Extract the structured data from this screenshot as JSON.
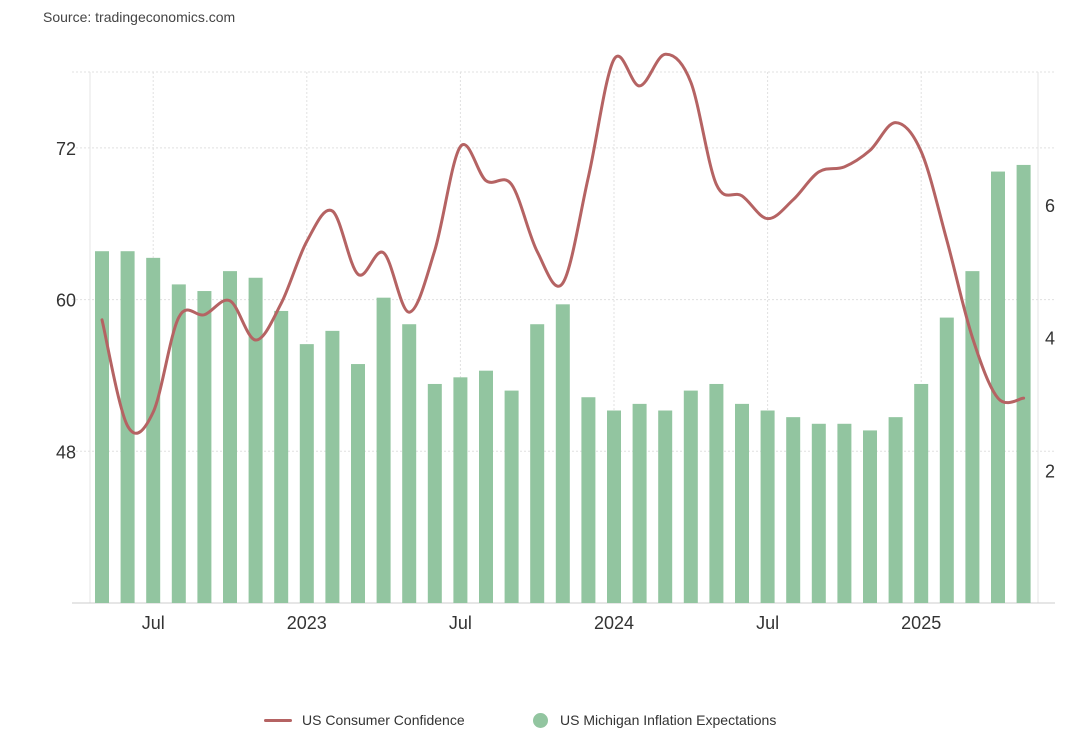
{
  "source": "Source: tradingeconomics.com",
  "chart_data": {
    "type": "bar",
    "x_tick_labels": [
      "Jul",
      "2023",
      "Jul",
      "2024",
      "Jul",
      "2025"
    ],
    "y_left": {
      "ticks": [
        "48",
        "60",
        "72"
      ],
      "ylim": [
        36,
        78
      ]
    },
    "y_right": {
      "ticks": [
        "2",
        "4",
        "6"
      ],
      "ylim": [
        0,
        8
      ]
    },
    "grid": true,
    "legend_position": "bottom",
    "colors": {
      "line": "#b56363",
      "bars": "#92c5a0"
    },
    "series": [
      {
        "name": "US Consumer Confidence",
        "type": "line",
        "axis": "left",
        "values": [
          58.4,
          50.0,
          51.1,
          58.6,
          58.8,
          59.9,
          56.8,
          59.7,
          64.6,
          67.0,
          62.0,
          63.7,
          59.0,
          63.9,
          72.1,
          69.4,
          69.1,
          63.8,
          61.3,
          69.7,
          79.0,
          76.9,
          79.4,
          77.2,
          69.1,
          68.2,
          66.4,
          67.9,
          70.1,
          70.5,
          71.8,
          74.0,
          71.7,
          64.7,
          57.0,
          52.2,
          52.2
        ]
      },
      {
        "name": "US Michigan Inflation Expectations",
        "type": "bar",
        "axis": "right",
        "values": [
          5.3,
          5.3,
          5.2,
          4.8,
          4.7,
          5.0,
          4.9,
          4.4,
          3.9,
          4.1,
          3.6,
          4.6,
          4.2,
          3.3,
          3.4,
          3.5,
          3.2,
          4.2,
          4.5,
          3.1,
          2.9,
          3.0,
          2.9,
          3.2,
          3.3,
          3.0,
          2.9,
          2.8,
          2.7,
          2.7,
          2.6,
          2.8,
          3.3,
          4.3,
          5.0,
          6.5,
          6.6
        ]
      }
    ]
  }
}
